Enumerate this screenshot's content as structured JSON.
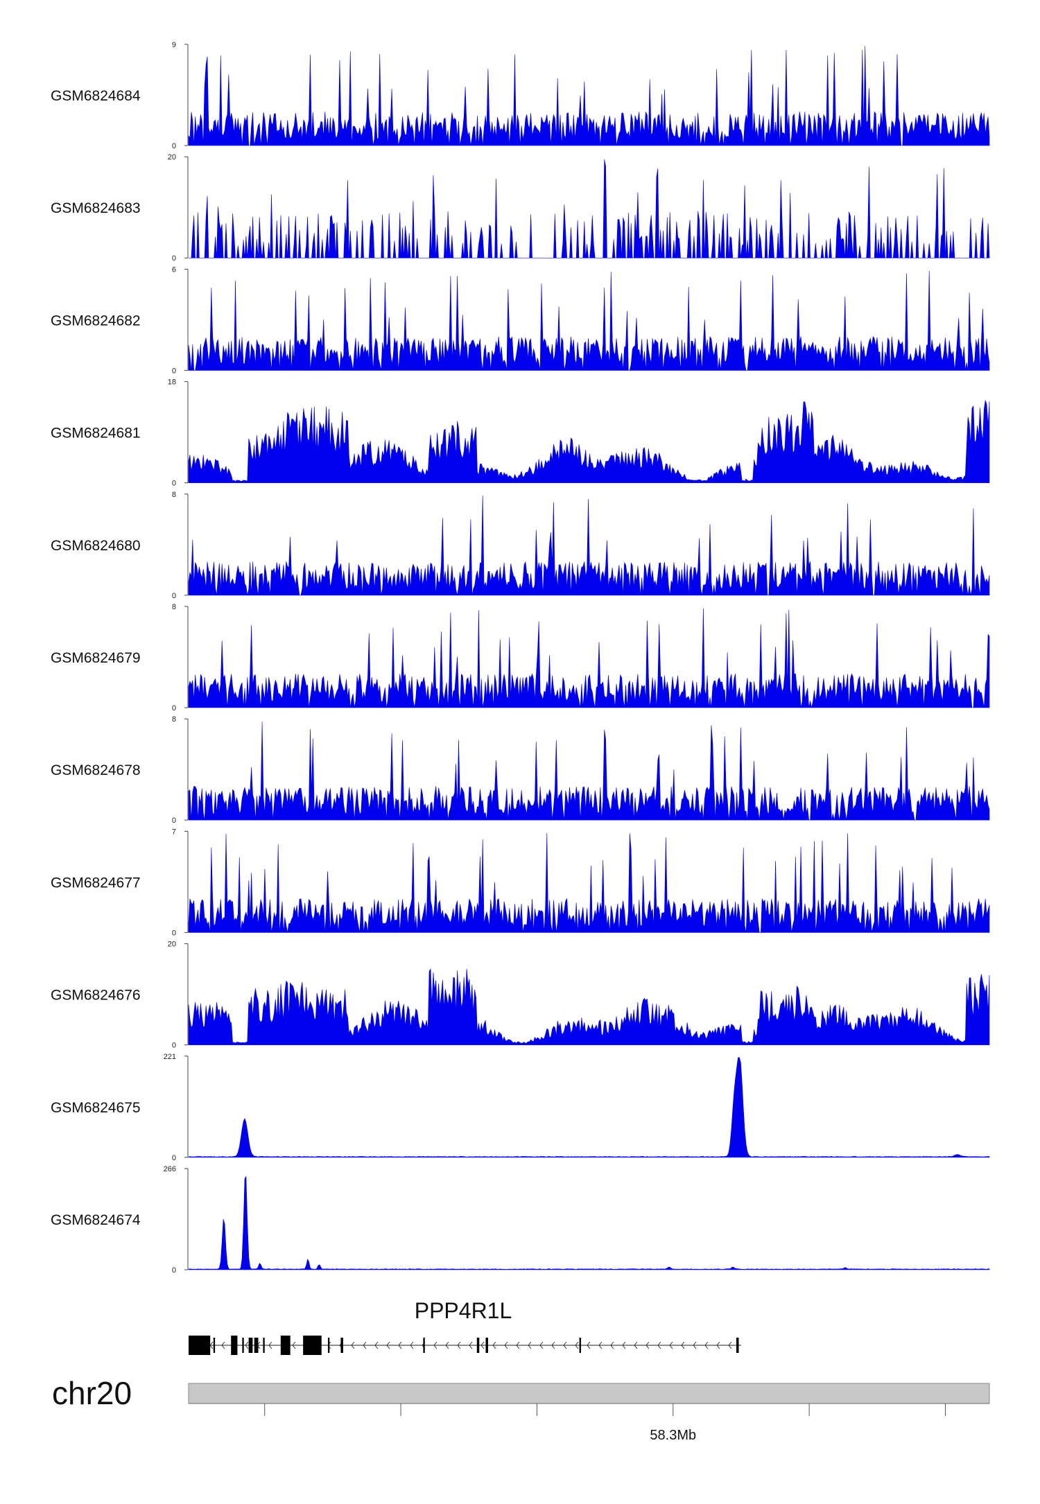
{
  "chart_data": {
    "type": "area",
    "series": [
      {
        "name": "GSM6824684",
        "ymax": "9",
        "ymin": "0",
        "pattern": "noise",
        "peaks": []
      },
      {
        "name": "GSM6824683",
        "ymax": "20",
        "ymin": "0",
        "pattern": "sparse",
        "peaks": []
      },
      {
        "name": "GSM6824682",
        "ymax": "6",
        "ymin": "0",
        "pattern": "noise",
        "peaks": []
      },
      {
        "name": "GSM6824681",
        "ymax": "18",
        "ymin": "0",
        "pattern": "broad",
        "peaks": []
      },
      {
        "name": "GSM6824680",
        "ymax": "8",
        "ymin": "0",
        "pattern": "noise",
        "peaks": []
      },
      {
        "name": "GSM6824679",
        "ymax": "8",
        "ymin": "0",
        "pattern": "noise",
        "peaks": []
      },
      {
        "name": "GSM6824678",
        "ymax": "8",
        "ymin": "0",
        "pattern": "noise",
        "peaks": []
      },
      {
        "name": "GSM6824677",
        "ymax": "7",
        "ymin": "0",
        "pattern": "noise",
        "peaks": []
      },
      {
        "name": "GSM6824676",
        "ymax": "20",
        "ymin": "0",
        "pattern": "broad",
        "peaks": []
      },
      {
        "name": "GSM6824675",
        "ymax": "221",
        "ymin": "0",
        "pattern": "peaks",
        "peaks": [
          {
            "pos": 0.07,
            "height": 0.38,
            "width": 0.004
          },
          {
            "pos": 0.688,
            "height": 1.0,
            "width": 0.004
          },
          {
            "pos": 0.681,
            "height": 0.42,
            "width": 0.003
          },
          {
            "pos": 0.96,
            "height": 0.02,
            "width": 0.004
          }
        ]
      },
      {
        "name": "GSM6824674",
        "ymax": "266",
        "ymin": "0",
        "pattern": "peaks",
        "peaks": [
          {
            "pos": 0.044,
            "height": 0.52,
            "width": 0.002
          },
          {
            "pos": 0.071,
            "height": 1.0,
            "width": 0.002
          },
          {
            "pos": 0.089,
            "height": 0.06,
            "width": 0.0015
          },
          {
            "pos": 0.149,
            "height": 0.1,
            "width": 0.0015
          },
          {
            "pos": 0.163,
            "height": 0.05,
            "width": 0.0015
          },
          {
            "pos": 0.6,
            "height": 0.02,
            "width": 0.002
          },
          {
            "pos": 0.68,
            "height": 0.02,
            "width": 0.002
          },
          {
            "pos": 0.82,
            "height": 0.015,
            "width": 0.002
          }
        ]
      }
    ],
    "gene": {
      "name": "PPP4R1L",
      "strand": "-",
      "start": 0.0,
      "end": 0.69,
      "exons": [
        [
          0.0,
          0.027
        ],
        [
          0.031,
          0.033
        ],
        [
          0.053,
          0.061
        ],
        [
          0.067,
          0.069
        ],
        [
          0.075,
          0.08
        ],
        [
          0.082,
          0.087
        ],
        [
          0.093,
          0.095
        ],
        [
          0.115,
          0.127
        ],
        [
          0.143,
          0.166
        ],
        [
          0.174,
          0.176
        ],
        [
          0.19,
          0.193
        ],
        [
          0.293,
          0.295
        ],
        [
          0.36,
          0.363
        ],
        [
          0.371,
          0.374
        ],
        [
          0.488,
          0.49
        ],
        [
          0.684,
          0.687
        ]
      ]
    },
    "chromosome": "chr20",
    "ticks": [
      {
        "pos": 0.095,
        "label": ""
      },
      {
        "pos": 0.265,
        "label": ""
      },
      {
        "pos": 0.435,
        "label": ""
      },
      {
        "pos": 0.605,
        "label": "58.3Mb"
      },
      {
        "pos": 0.775,
        "label": ""
      },
      {
        "pos": 0.945,
        "label": ""
      }
    ],
    "colors": {
      "signal": "#0000ee",
      "exon": "#000000",
      "ideogram": "#c8c8c8"
    }
  }
}
